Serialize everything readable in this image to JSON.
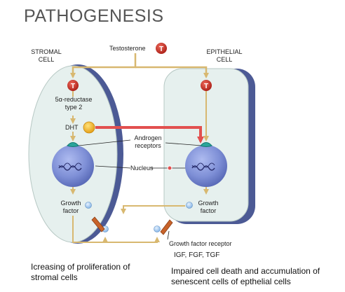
{
  "title": "PATHOGENESIS",
  "cells": {
    "stromal_line1": "STROMAL",
    "stromal_line2": "CELL",
    "epithelial_line1": "EPITHELIAL",
    "epithelial_line2": "CELL"
  },
  "labels": {
    "testosterone": "Testosterone",
    "testosterone_symbol": "T",
    "reductase_line1": "5α-reductase",
    "reductase_line2": "type 2",
    "dht": "DHT",
    "androgen_line1": "Androgen",
    "androgen_line2": "receptors",
    "nucleus": "Nucleus",
    "growth_factor_left_line1": "Growth",
    "growth_factor_left_line2": "factor",
    "growth_factor_right_line1": "Growth",
    "growth_factor_right_line2": "factor",
    "growth_factor_receptor": "Growth factor receptor",
    "factors": "IGF, FGF, TGF"
  },
  "captions": {
    "left_line1": "Icreasing of proliferation of",
    "left_line2": "stromal cells",
    "right_line1": "Impaired cell death and accumulation of",
    "right_line2": "senescent cells of epthelial cells"
  },
  "colors": {
    "stromal_fill": "#e6f0ee",
    "cell_border": "#4c5a95",
    "nucleus": "#7e8fd6",
    "arrow": "#d8b870",
    "dht_path": "#e2504f",
    "testosterone_red": "#c0281e",
    "dht_yellow": "#f2b824",
    "growth_factor_blue": "#a9cbee",
    "receptor_orange": "#c8632a"
  }
}
